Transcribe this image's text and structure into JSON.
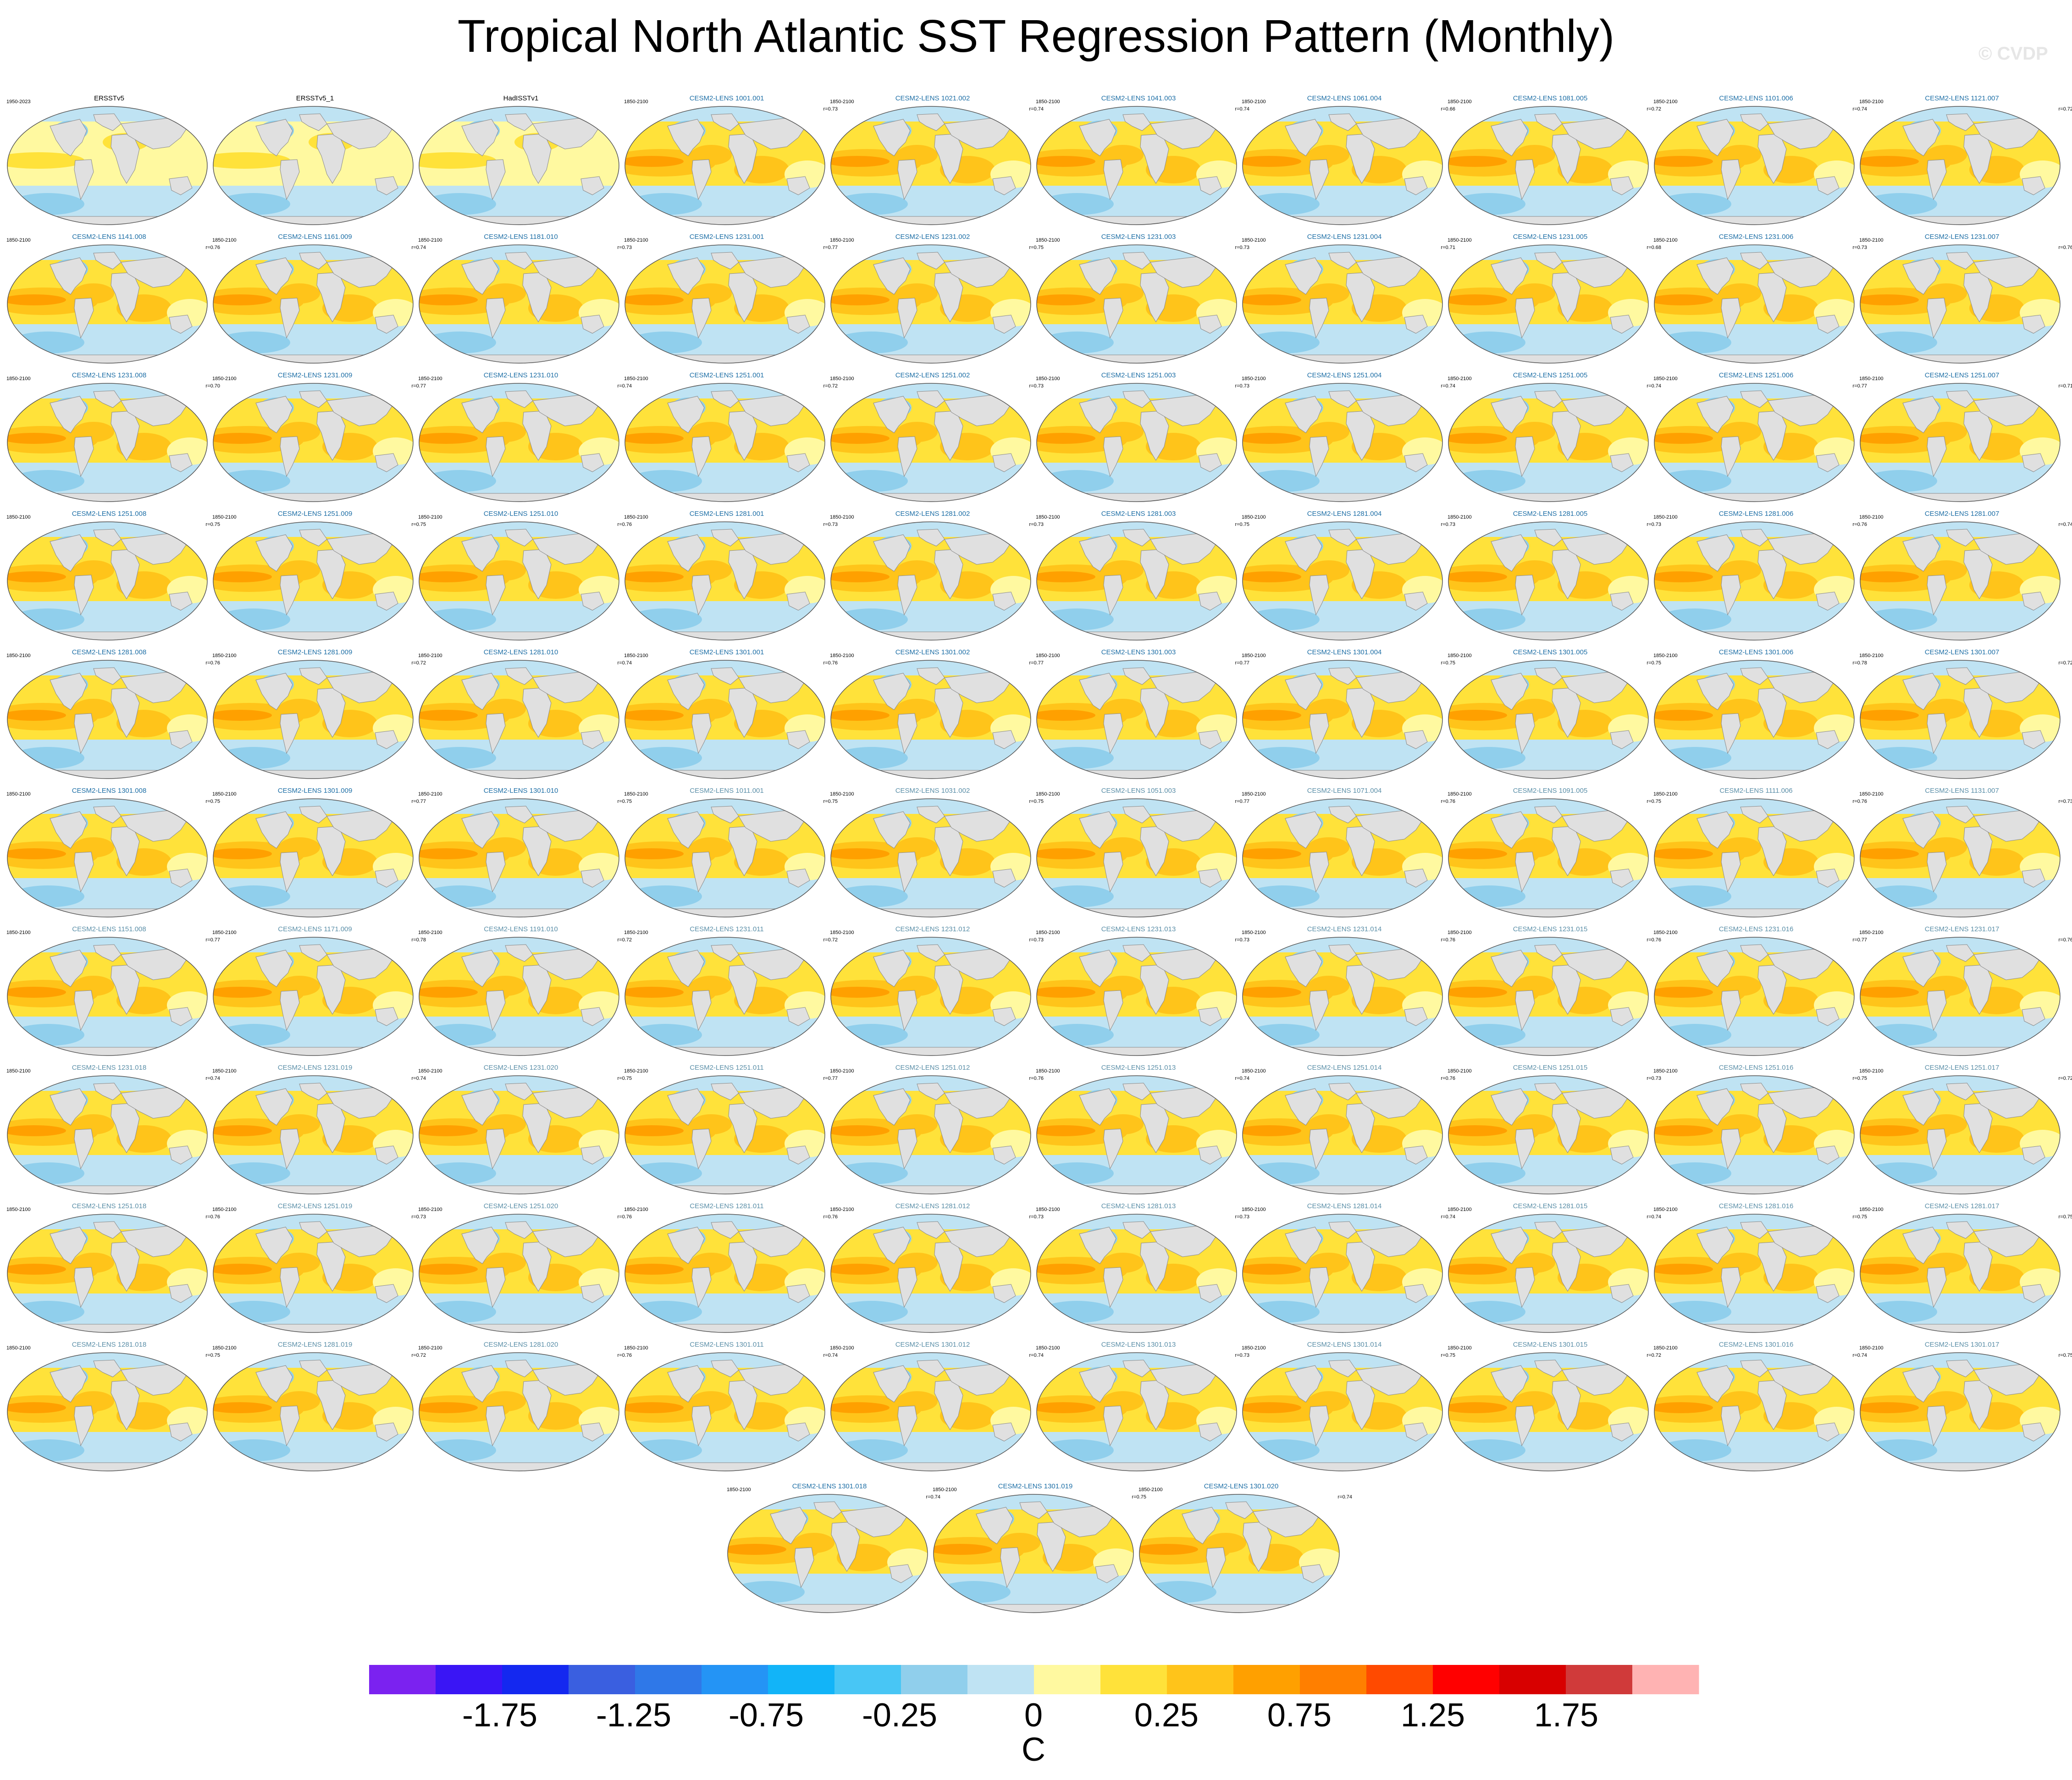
{
  "title": "Tropical North Atlantic SST Regression Pattern (Monthly)",
  "watermark": "© CVDP",
  "colorbar": {
    "units": "C",
    "labels": [
      "-1.75",
      "-1.25",
      "-0.75",
      "-0.25",
      "0",
      "0.25",
      "0.75",
      "1.25",
      "1.75"
    ],
    "colors": [
      "#7b22f0",
      "#3a15f5",
      "#1428f0",
      "#3a5fe0",
      "#2f78e8",
      "#2494f5",
      "#12b4f8",
      "#48c6f5",
      "#90cfec",
      "#bfe3f3",
      "#fff9a0",
      "#ffe23a",
      "#ffc41a",
      "#ffa000",
      "#ff7f00",
      "#ff4a00",
      "#ff0000",
      "#d80000",
      "#d03a3a",
      "#ffb3b3"
    ]
  },
  "panels": [
    {
      "title": "ERSSTv5",
      "period": "1950-2023",
      "corr": "",
      "obs": true
    },
    {
      "title": "ERSSTv5_1",
      "period": "",
      "corr": "",
      "obs": true
    },
    {
      "title": "HadISSTv1",
      "period": "",
      "corr": "",
      "obs": true
    },
    {
      "title": "CESM2-LENS 1001.001",
      "period": "1850-2100",
      "corr": "r=0.73"
    },
    {
      "title": "CESM2-LENS 1021.002",
      "period": "1850-2100",
      "corr": "r=0.74"
    },
    {
      "title": "CESM2-LENS 1041.003",
      "period": "1850-2100",
      "corr": "r=0.74"
    },
    {
      "title": "CESM2-LENS 1061.004",
      "period": "1850-2100",
      "corr": "r=0.66"
    },
    {
      "title": "CESM2-LENS 1081.005",
      "period": "1850-2100",
      "corr": "r=0.72"
    },
    {
      "title": "CESM2-LENS 1101.006",
      "period": "1850-2100",
      "corr": "r=0.74"
    },
    {
      "title": "CESM2-LENS 1121.007",
      "period": "1850-2100",
      "corr": "r=0.72"
    },
    {
      "title": "CESM2-LENS 1141.008",
      "period": "1850-2100",
      "corr": "r=0.76"
    },
    {
      "title": "CESM2-LENS 1161.009",
      "period": "1850-2100",
      "corr": "r=0.74"
    },
    {
      "title": "CESM2-LENS 1181.010",
      "period": "1850-2100",
      "corr": "r=0.73"
    },
    {
      "title": "CESM2-LENS 1231.001",
      "period": "1850-2100",
      "corr": "r=0.77"
    },
    {
      "title": "CESM2-LENS 1231.002",
      "period": "1850-2100",
      "corr": "r=0.75"
    },
    {
      "title": "CESM2-LENS 1231.003",
      "period": "1850-2100",
      "corr": "r=0.73"
    },
    {
      "title": "CESM2-LENS 1231.004",
      "period": "1850-2100",
      "corr": "r=0.71"
    },
    {
      "title": "CESM2-LENS 1231.005",
      "period": "1850-2100",
      "corr": "r=0.68"
    },
    {
      "title": "CESM2-LENS 1231.006",
      "period": "1850-2100",
      "corr": "r=0.73"
    },
    {
      "title": "CESM2-LENS 1231.007",
      "period": "1850-2100",
      "corr": "r=0.76"
    },
    {
      "title": "CESM2-LENS 1231.008",
      "period": "1850-2100",
      "corr": "r=0.70"
    },
    {
      "title": "CESM2-LENS 1231.009",
      "period": "1850-2100",
      "corr": "r=0.77"
    },
    {
      "title": "CESM2-LENS 1231.010",
      "period": "1850-2100",
      "corr": "r=0.74"
    },
    {
      "title": "CESM2-LENS 1251.001",
      "period": "1850-2100",
      "corr": "r=0.72"
    },
    {
      "title": "CESM2-LENS 1251.002",
      "period": "1850-2100",
      "corr": "r=0.73"
    },
    {
      "title": "CESM2-LENS 1251.003",
      "period": "1850-2100",
      "corr": "r=0.73"
    },
    {
      "title": "CESM2-LENS 1251.004",
      "period": "1850-2100",
      "corr": "r=0.74"
    },
    {
      "title": "CESM2-LENS 1251.005",
      "period": "1850-2100",
      "corr": "r=0.74"
    },
    {
      "title": "CESM2-LENS 1251.006",
      "period": "1850-2100",
      "corr": "r=0.77"
    },
    {
      "title": "CESM2-LENS 1251.007",
      "period": "1850-2100",
      "corr": "r=0.71"
    },
    {
      "title": "CESM2-LENS 1251.008",
      "period": "1850-2100",
      "corr": "r=0.75"
    },
    {
      "title": "CESM2-LENS 1251.009",
      "period": "1850-2100",
      "corr": "r=0.75"
    },
    {
      "title": "CESM2-LENS 1251.010",
      "period": "1850-2100",
      "corr": "r=0.76"
    },
    {
      "title": "CESM2-LENS 1281.001",
      "period": "1850-2100",
      "corr": "r=0.73"
    },
    {
      "title": "CESM2-LENS 1281.002",
      "period": "1850-2100",
      "corr": "r=0.73"
    },
    {
      "title": "CESM2-LENS 1281.003",
      "period": "1850-2100",
      "corr": "r=0.75"
    },
    {
      "title": "CESM2-LENS 1281.004",
      "period": "1850-2100",
      "corr": "r=0.73"
    },
    {
      "title": "CESM2-LENS 1281.005",
      "period": "1850-2100",
      "corr": "r=0.73"
    },
    {
      "title": "CESM2-LENS 1281.006",
      "period": "1850-2100",
      "corr": "r=0.76"
    },
    {
      "title": "CESM2-LENS 1281.007",
      "period": "1850-2100",
      "corr": "r=0.74"
    },
    {
      "title": "CESM2-LENS 1281.008",
      "period": "1850-2100",
      "corr": "r=0.76"
    },
    {
      "title": "CESM2-LENS 1281.009",
      "period": "1850-2100",
      "corr": "r=0.72"
    },
    {
      "title": "CESM2-LENS 1281.010",
      "period": "1850-2100",
      "corr": "r=0.74"
    },
    {
      "title": "CESM2-LENS 1301.001",
      "period": "1850-2100",
      "corr": "r=0.76"
    },
    {
      "title": "CESM2-LENS 1301.002",
      "period": "1850-2100",
      "corr": "r=0.77"
    },
    {
      "title": "CESM2-LENS 1301.003",
      "period": "1850-2100",
      "corr": "r=0.77"
    },
    {
      "title": "CESM2-LENS 1301.004",
      "period": "1850-2100",
      "corr": "r=0.75"
    },
    {
      "title": "CESM2-LENS 1301.005",
      "period": "1850-2100",
      "corr": "r=0.75"
    },
    {
      "title": "CESM2-LENS 1301.006",
      "period": "1850-2100",
      "corr": "r=0.78"
    },
    {
      "title": "CESM2-LENS 1301.007",
      "period": "1850-2100",
      "corr": "r=0.72"
    },
    {
      "title": "CESM2-LENS 1301.008",
      "period": "1850-2100",
      "corr": "r=0.75"
    },
    {
      "title": "CESM2-LENS 1301.009",
      "period": "1850-2100",
      "corr": "r=0.77"
    },
    {
      "title": "CESM2-LENS 1301.010",
      "period": "1850-2100",
      "corr": "r=0.75"
    },
    {
      "title": "CESM2-LENS 1011.001",
      "period": "1850-2100",
      "corr": "r=0.75"
    },
    {
      "title": "CESM2-LENS 1031.002",
      "period": "1850-2100",
      "corr": "r=0.75"
    },
    {
      "title": "CESM2-LENS 1051.003",
      "period": "1850-2100",
      "corr": "r=0.77"
    },
    {
      "title": "CESM2-LENS 1071.004",
      "period": "1850-2100",
      "corr": "r=0.76"
    },
    {
      "title": "CESM2-LENS 1091.005",
      "period": "1850-2100",
      "corr": "r=0.75"
    },
    {
      "title": "CESM2-LENS 1111.006",
      "period": "1850-2100",
      "corr": "r=0.76"
    },
    {
      "title": "CESM2-LENS 1131.007",
      "period": "1850-2100",
      "corr": "r=0.73"
    },
    {
      "title": "CESM2-LENS 1151.008",
      "period": "1850-2100",
      "corr": "r=0.77"
    },
    {
      "title": "CESM2-LENS 1171.009",
      "period": "1850-2100",
      "corr": "r=0.78"
    },
    {
      "title": "CESM2-LENS 1191.010",
      "period": "1850-2100",
      "corr": "r=0.72"
    },
    {
      "title": "CESM2-LENS 1231.011",
      "period": "1850-2100",
      "corr": "r=0.72"
    },
    {
      "title": "CESM2-LENS 1231.012",
      "period": "1850-2100",
      "corr": "r=0.73"
    },
    {
      "title": "CESM2-LENS 1231.013",
      "period": "1850-2100",
      "corr": "r=0.73"
    },
    {
      "title": "CESM2-LENS 1231.014",
      "period": "1850-2100",
      "corr": "r=0.76"
    },
    {
      "title": "CESM2-LENS 1231.015",
      "period": "1850-2100",
      "corr": "r=0.76"
    },
    {
      "title": "CESM2-LENS 1231.016",
      "period": "1850-2100",
      "corr": "r=0.77"
    },
    {
      "title": "CESM2-LENS 1231.017",
      "period": "1850-2100",
      "corr": "r=0.76"
    },
    {
      "title": "CESM2-LENS 1231.018",
      "period": "1850-2100",
      "corr": "r=0.74"
    },
    {
      "title": "CESM2-LENS 1231.019",
      "period": "1850-2100",
      "corr": "r=0.74"
    },
    {
      "title": "CESM2-LENS 1231.020",
      "period": "1850-2100",
      "corr": "r=0.75"
    },
    {
      "title": "CESM2-LENS 1251.011",
      "period": "1850-2100",
      "corr": "r=0.77"
    },
    {
      "title": "CESM2-LENS 1251.012",
      "period": "1850-2100",
      "corr": "r=0.76"
    },
    {
      "title": "CESM2-LENS 1251.013",
      "period": "1850-2100",
      "corr": "r=0.74"
    },
    {
      "title": "CESM2-LENS 1251.014",
      "period": "1850-2100",
      "corr": "r=0.76"
    },
    {
      "title": "CESM2-LENS 1251.015",
      "period": "1850-2100",
      "corr": "r=0.73"
    },
    {
      "title": "CESM2-LENS 1251.016",
      "period": "1850-2100",
      "corr": "r=0.75"
    },
    {
      "title": "CESM2-LENS 1251.017",
      "period": "1850-2100",
      "corr": "r=0.72"
    },
    {
      "title": "CESM2-LENS 1251.018",
      "period": "1850-2100",
      "corr": "r=0.76"
    },
    {
      "title": "CESM2-LENS 1251.019",
      "period": "1850-2100",
      "corr": "r=0.73"
    },
    {
      "title": "CESM2-LENS 1251.020",
      "period": "1850-2100",
      "corr": "r=0.76"
    },
    {
      "title": "CESM2-LENS 1281.011",
      "period": "1850-2100",
      "corr": "r=0.76"
    },
    {
      "title": "CESM2-LENS 1281.012",
      "period": "1850-2100",
      "corr": "r=0.73"
    },
    {
      "title": "CESM2-LENS 1281.013",
      "period": "1850-2100",
      "corr": "r=0.73"
    },
    {
      "title": "CESM2-LENS 1281.014",
      "period": "1850-2100",
      "corr": "r=0.74"
    },
    {
      "title": "CESM2-LENS 1281.015",
      "period": "1850-2100",
      "corr": "r=0.74"
    },
    {
      "title": "CESM2-LENS 1281.016",
      "period": "1850-2100",
      "corr": "r=0.75"
    },
    {
      "title": "CESM2-LENS 1281.017",
      "period": "1850-2100",
      "corr": "r=0.75"
    },
    {
      "title": "CESM2-LENS 1281.018",
      "period": "1850-2100",
      "corr": "r=0.75"
    },
    {
      "title": "CESM2-LENS 1281.019",
      "period": "1850-2100",
      "corr": "r=0.72"
    },
    {
      "title": "CESM2-LENS 1281.020",
      "period": "1850-2100",
      "corr": "r=0.76"
    },
    {
      "title": "CESM2-LENS 1301.011",
      "period": "1850-2100",
      "corr": "r=0.74"
    },
    {
      "title": "CESM2-LENS 1301.012",
      "period": "1850-2100",
      "corr": "r=0.74"
    },
    {
      "title": "CESM2-LENS 1301.013",
      "period": "1850-2100",
      "corr": "r=0.73"
    },
    {
      "title": "CESM2-LENS 1301.014",
      "period": "1850-2100",
      "corr": "r=0.75"
    },
    {
      "title": "CESM2-LENS 1301.015",
      "period": "1850-2100",
      "corr": "r=0.72"
    },
    {
      "title": "CESM2-LENS 1301.016",
      "period": "1850-2100",
      "corr": "r=0.74"
    },
    {
      "title": "CESM2-LENS 1301.017",
      "period": "1850-2100",
      "corr": "r=0.75"
    },
    {
      "title": "CESM2-LENS 1301.018",
      "period": "1850-2100",
      "corr": "r=0.74"
    },
    {
      "title": "CESM2-LENS 1301.019",
      "period": "1850-2100",
      "corr": "r=0.75"
    },
    {
      "title": "CESM2-LENS 1301.020",
      "period": "1850-2100",
      "corr": "r=0.74"
    }
  ]
}
